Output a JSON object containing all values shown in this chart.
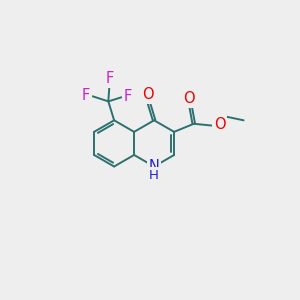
{
  "bg_color": "#eeeeee",
  "bond_color": "#2d7070",
  "bond_width": 1.4,
  "dbo": 0.055,
  "atom_colors": {
    "O": "#ee0000",
    "N": "#2222cc",
    "F": "#cc22cc",
    "C": "#2d7070"
  },
  "fs": 10.5,
  "fs_small": 9.5,
  "bl": 1.0
}
